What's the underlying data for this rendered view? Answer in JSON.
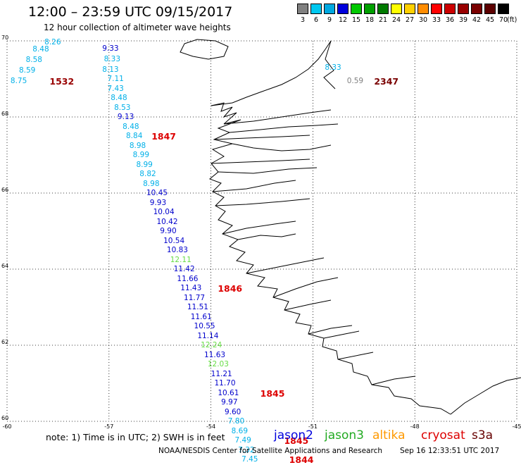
{
  "title": "12:00 – 23:59 UTC 09/15/2017",
  "subtitle": "12 hour collection of altimeter wave heights",
  "legend": {
    "unit": "(ft)",
    "entries": [
      {
        "label": "3",
        "color": "#808080"
      },
      {
        "label": "6",
        "color": "#00c8f0"
      },
      {
        "label": "9",
        "color": "#00a8e0"
      },
      {
        "label": "12",
        "color": "#0000dd"
      },
      {
        "label": "15",
        "color": "#00c800"
      },
      {
        "label": "18",
        "color": "#00a000"
      },
      {
        "label": "21",
        "color": "#007a00"
      },
      {
        "label": "24",
        "color": "#ffff00"
      },
      {
        "label": "27",
        "color": "#ffd000"
      },
      {
        "label": "30",
        "color": "#ff8c00"
      },
      {
        "label": "33",
        "color": "#ff0000"
      },
      {
        "label": "36",
        "color": "#cc0000"
      },
      {
        "label": "39",
        "color": "#990000"
      },
      {
        "label": "42",
        "color": "#7a0000"
      },
      {
        "label": "45",
        "color": "#5c0000"
      },
      {
        "label": "70",
        "color": "#000000"
      }
    ]
  },
  "axes": {
    "lon_labels": [
      "-60",
      "-57",
      "-54",
      "-51",
      "-48",
      "-45"
    ],
    "lat_labels": [
      "70",
      "68",
      "66",
      "64",
      "62",
      "60"
    ],
    "lon_ticks": [
      -60,
      -57,
      -54,
      -51,
      -48,
      -45
    ],
    "lat_ticks": [
      70,
      68,
      66,
      64,
      62,
      60
    ],
    "lon_range": [
      -60,
      -45
    ],
    "lat_range": [
      60,
      70
    ],
    "grid": true
  },
  "observations": [
    {
      "text": "8.26",
      "lon": -58.65,
      "lat": 69.96,
      "color": "#00b0e8"
    },
    {
      "text": "8.48",
      "lon": -59.0,
      "lat": 69.78,
      "color": "#00b0e8"
    },
    {
      "text": "9.33",
      "lon": -56.95,
      "lat": 69.8,
      "color": "#0000cc"
    },
    {
      "text": "8.58",
      "lon": -59.2,
      "lat": 69.5,
      "color": "#00b0e8"
    },
    {
      "text": "8.33",
      "lon": -56.9,
      "lat": 69.52,
      "color": "#00b0e8"
    },
    {
      "text": "8.59",
      "lon": -59.4,
      "lat": 69.22,
      "color": "#00b0e8"
    },
    {
      "text": "8.13",
      "lon": -56.95,
      "lat": 69.25,
      "color": "#00b0e8"
    },
    {
      "text": "8.75",
      "lon": -59.65,
      "lat": 68.95,
      "color": "#00b0e8"
    },
    {
      "text": "7.11",
      "lon": -56.8,
      "lat": 69.0,
      "color": "#00b0e8"
    },
    {
      "text": "7.43",
      "lon": -56.8,
      "lat": 68.75,
      "color": "#00b0e8"
    },
    {
      "text": "8.48",
      "lon": -56.7,
      "lat": 68.5,
      "color": "#00b0e8"
    },
    {
      "text": "8.53",
      "lon": -56.6,
      "lat": 68.25,
      "color": "#00b0e8"
    },
    {
      "text": "9.13",
      "lon": -56.5,
      "lat": 68.0,
      "color": "#0000cc"
    },
    {
      "text": "8.48",
      "lon": -56.35,
      "lat": 67.75,
      "color": "#00b0e8"
    },
    {
      "text": "8.84",
      "lon": -56.25,
      "lat": 67.5,
      "color": "#00b0e8"
    },
    {
      "text": "8.98",
      "lon": -56.15,
      "lat": 67.25,
      "color": "#00b0e8"
    },
    {
      "text": "8.99",
      "lon": -56.05,
      "lat": 67.0,
      "color": "#00b0e8"
    },
    {
      "text": "8.99",
      "lon": -55.95,
      "lat": 66.75,
      "color": "#00b0e8"
    },
    {
      "text": "8.82",
      "lon": -55.85,
      "lat": 66.5,
      "color": "#00b0e8"
    },
    {
      "text": "8.98",
      "lon": -55.75,
      "lat": 66.25,
      "color": "#00b0e8"
    },
    {
      "text": "10.45",
      "lon": -55.65,
      "lat": 66.0,
      "color": "#0000cc"
    },
    {
      "text": "9.93",
      "lon": -55.55,
      "lat": 65.75,
      "color": "#0000cc"
    },
    {
      "text": "10.04",
      "lon": -55.45,
      "lat": 65.5,
      "color": "#0000cc"
    },
    {
      "text": "10.42",
      "lon": -55.35,
      "lat": 65.25,
      "color": "#0000cc"
    },
    {
      "text": "9.90",
      "lon": -55.25,
      "lat": 65.0,
      "color": "#0000cc"
    },
    {
      "text": "10.54",
      "lon": -55.15,
      "lat": 64.75,
      "color": "#0000cc"
    },
    {
      "text": "10.83",
      "lon": -55.05,
      "lat": 64.5,
      "color": "#0000cc"
    },
    {
      "text": "12.11",
      "lon": -54.95,
      "lat": 64.25,
      "color": "#66dd44"
    },
    {
      "text": "11.42",
      "lon": -54.85,
      "lat": 64.0,
      "color": "#0000cc"
    },
    {
      "text": "11.66",
      "lon": -54.75,
      "lat": 63.75,
      "color": "#0000cc"
    },
    {
      "text": "11.43",
      "lon": -54.65,
      "lat": 63.5,
      "color": "#0000cc"
    },
    {
      "text": "11.77",
      "lon": -54.55,
      "lat": 63.25,
      "color": "#0000cc"
    },
    {
      "text": "11.51",
      "lon": -54.45,
      "lat": 63.0,
      "color": "#0000cc"
    },
    {
      "text": "11.61",
      "lon": -54.35,
      "lat": 62.75,
      "color": "#0000cc"
    },
    {
      "text": "10.55",
      "lon": -54.25,
      "lat": 62.5,
      "color": "#0000cc"
    },
    {
      "text": "11.14",
      "lon": -54.15,
      "lat": 62.25,
      "color": "#0000cc"
    },
    {
      "text": "12.24",
      "lon": -54.05,
      "lat": 62.0,
      "color": "#66dd44"
    },
    {
      "text": "11.63",
      "lon": -53.95,
      "lat": 61.75,
      "color": "#0000cc"
    },
    {
      "text": "12.03",
      "lon": -53.85,
      "lat": 61.5,
      "color": "#66dd44"
    },
    {
      "text": "11.21",
      "lon": -53.75,
      "lat": 61.25,
      "color": "#0000cc"
    },
    {
      "text": "11.70",
      "lon": -53.65,
      "lat": 61.0,
      "color": "#0000cc"
    },
    {
      "text": "10.61",
      "lon": -53.55,
      "lat": 60.75,
      "color": "#0000cc"
    },
    {
      "text": "9.97",
      "lon": -53.45,
      "lat": 60.5,
      "color": "#0000cc"
    },
    {
      "text": "9.60",
      "lon": -53.35,
      "lat": 60.25,
      "color": "#0000cc"
    },
    {
      "text": "7.80",
      "lon": -53.25,
      "lat": 60.0,
      "color": "#00b0e8"
    },
    {
      "text": "8.69",
      "lon": -53.15,
      "lat": 59.75,
      "color": "#00b0e8"
    },
    {
      "text": "7.49",
      "lon": -53.05,
      "lat": 59.5,
      "color": "#00b0e8"
    },
    {
      "text": "7.32",
      "lon": -52.95,
      "lat": 59.25,
      "color": "#00b0e8"
    },
    {
      "text": "7.45",
      "lon": -52.85,
      "lat": 59.0,
      "color": "#00b0e8"
    },
    {
      "text": "8.33",
      "lon": -50.4,
      "lat": 69.3,
      "color": "#00b0e8"
    },
    {
      "text": "0.59",
      "lon": -49.75,
      "lat": 68.95,
      "color": "#808080"
    }
  ],
  "track_labels": [
    {
      "text": "1532",
      "lon": -58.5,
      "lat": 68.95,
      "color": "#990000"
    },
    {
      "text": "1847",
      "lon": -55.5,
      "lat": 67.5,
      "color": "#dd0000"
    },
    {
      "text": "1846",
      "lon": -53.55,
      "lat": 63.5,
      "color": "#dd0000"
    },
    {
      "text": "1845",
      "lon": -52.3,
      "lat": 60.75,
      "color": "#dd0000"
    },
    {
      "text": "1845",
      "lon": -51.6,
      "lat": 59.5,
      "color": "#dd0000"
    },
    {
      "text": "1844",
      "lon": -51.45,
      "lat": 59.0,
      "color": "#dd0000"
    },
    {
      "text": "2347",
      "lon": -48.95,
      "lat": 68.95,
      "color": "#7a0000"
    }
  ],
  "note": "note:  1) Time is in UTC;  2) SWH is in feet",
  "satellites": [
    {
      "name": "jason2",
      "color": "#0000dd"
    },
    {
      "name": "jason3",
      "color": "#22aa22"
    },
    {
      "name": "altika",
      "color": "#ff9900"
    },
    {
      "name": "cryosat",
      "color": "#dd0000"
    },
    {
      "name": "s3a",
      "color": "#660000"
    }
  ],
  "credit": "NOAA/NESDIS Center for Satellite Applications and Research",
  "timestamp": "Sep 16 12:33:51 UTC 2017"
}
